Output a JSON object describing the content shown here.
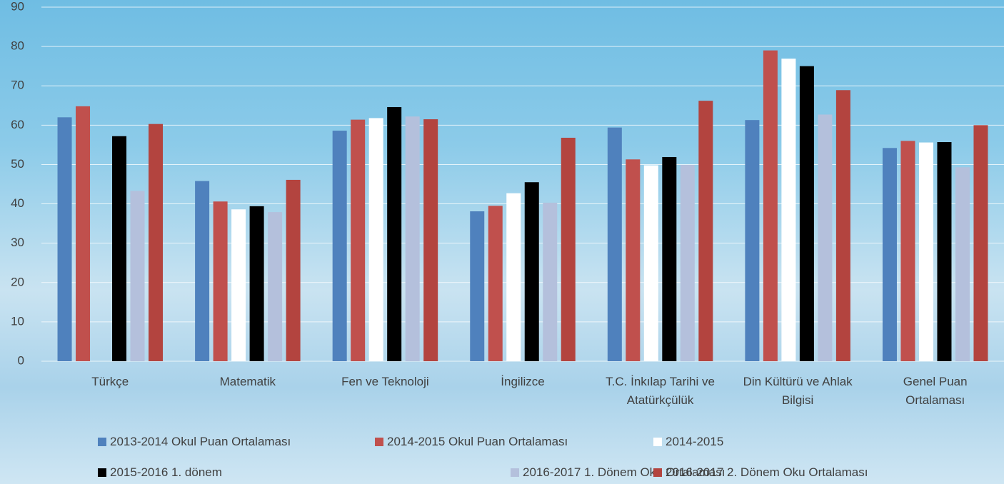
{
  "chart_data": {
    "type": "bar",
    "categories": [
      "Türkçe",
      "Matematik",
      "Fen ve Teknoloji",
      "İngilizce",
      "T.C. İnkılap Tarihi ve Atatürkçülük",
      "Din Kültürü ve Ahlak Bilgisi",
      "Genel Puan Ortalaması"
    ],
    "series": [
      {
        "name": "2013-2014 Okul Puan Ortalaması",
        "color": "#4f81bd",
        "values": [
          62,
          45.8,
          58.6,
          38.1,
          59.4,
          61.3,
          54.2
        ]
      },
      {
        "name": "2014-2015 Okul Puan Ortalaması",
        "color": "#c0504d",
        "values": [
          64.8,
          40.6,
          61.4,
          39.5,
          51.3,
          79,
          56
        ]
      },
      {
        "name": "2014-2015",
        "color": "#ffffff",
        "values": [
          null,
          38.6,
          61.8,
          42.7,
          49.8,
          76.9,
          55.6
        ]
      },
      {
        "name": "2015-2016 1. dönem",
        "color": "#000000",
        "values": [
          57.2,
          39.4,
          64.6,
          45.5,
          51.9,
          75,
          55.7
        ]
      },
      {
        "name": "2016-2017 1. Dönem Oku Ortalaması",
        "color": "#b4c0dc",
        "values": [
          43.3,
          37.9,
          62.2,
          40.3,
          49.9,
          62.7,
          49.3
        ]
      },
      {
        "name": "2016-2017 2. Dönem Oku Ortalaması",
        "color": "#b3443f",
        "values": [
          60.3,
          46.1,
          61.5,
          56.8,
          66.2,
          68.9,
          60
        ]
      }
    ],
    "ylim": [
      0,
      90
    ],
    "yticks": [
      0,
      10,
      20,
      30,
      40,
      50,
      60,
      70,
      80,
      90
    ],
    "grid": true
  }
}
